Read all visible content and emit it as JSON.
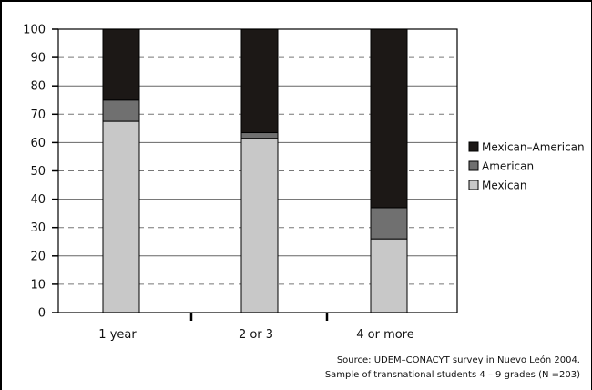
{
  "chart_data": {
    "type": "bar",
    "stacked": true,
    "categories": [
      "1 year",
      "2 or 3",
      "4 or more"
    ],
    "series": [
      {
        "name": "Mexican",
        "values": [
          67.5,
          61.5,
          26
        ],
        "color": "#c8c8c8"
      },
      {
        "name": "American",
        "values": [
          7.5,
          2,
          11
        ],
        "color": "#707070"
      },
      {
        "name": "Mexican–American",
        "values": [
          25,
          36.5,
          63
        ],
        "color": "#1c1816"
      }
    ],
    "ylim": [
      0,
      100
    ],
    "yticks": [
      0,
      10,
      20,
      30,
      40,
      50,
      60,
      70,
      80,
      90,
      100
    ],
    "grid": "horizontal, solid at even tens, dashed at odd tens",
    "legend_placement": "right",
    "legend_order": [
      "Mexican–American",
      "American",
      "Mexican"
    ],
    "notes": [
      "Source: UDEM–CONACYT survey in Nuevo León 2004.",
      "Sample of transnational students 4 – 9 grades (N =203)"
    ]
  }
}
